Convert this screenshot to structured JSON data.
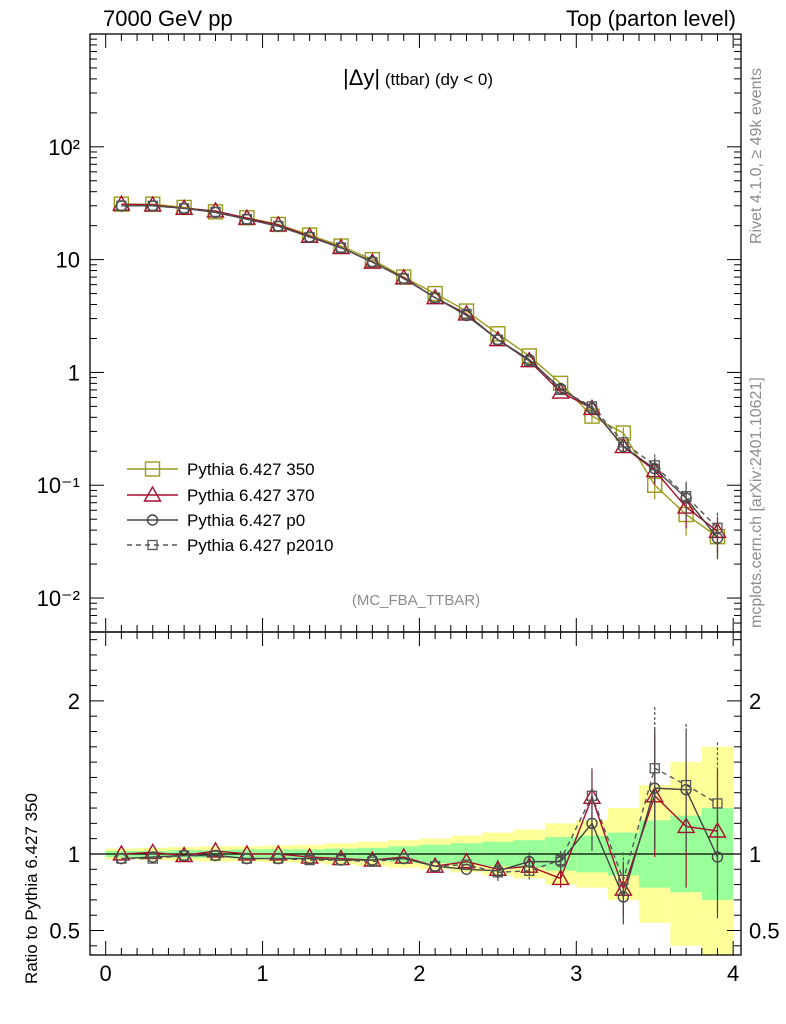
{
  "header": {
    "left": "7000 GeV pp",
    "right": "Top (parton level)"
  },
  "side_labels": {
    "rivet": "Rivet 4.1.0, ≥ 49k events",
    "mcplots": "mcplots.cern.ch [arXiv:2401.10621]"
  },
  "colors": {
    "p350": "#9a9a1a",
    "p370": "#a80d2b",
    "p0": "#444444",
    "p2010": "#555555",
    "band_inner": "#99ff99",
    "band_outer": "#ffff99"
  },
  "chart_data": [
    {
      "type": "line",
      "title": "|Δy| (ttbar) (dy < 0)",
      "title_main": "|Δy|",
      "title_sub": " (ttbar) (dy < 0)",
      "watermark": "(MC_FBA_TTBAR)",
      "yscale": "log",
      "xlim": [
        -0.1,
        4.05
      ],
      "ylim": [
        0.005,
        1000
      ],
      "xlabel": "",
      "ylabel": "",
      "ytick_labels": [
        "10⁻²",
        "10⁻¹",
        "1",
        "10",
        "10²"
      ],
      "x": [
        0.1,
        0.3,
        0.5,
        0.7,
        0.9,
        1.1,
        1.3,
        1.5,
        1.7,
        1.9,
        2.1,
        2.3,
        2.5,
        2.7,
        2.9,
        3.1,
        3.3,
        3.5,
        3.7,
        3.9
      ],
      "legend_position": "bottom-left",
      "series": [
        {
          "name": "Pythia 6.427 350",
          "key": "p350",
          "marker": "square",
          "dashed": false,
          "values": [
            31,
            31,
            29,
            26.5,
            23.5,
            20.5,
            16.5,
            13.2,
            10,
            7,
            5,
            3.5,
            2.2,
            1.4,
            0.8,
            0.41,
            0.29,
            0.1,
            0.055,
            0.035
          ]
        },
        {
          "name": "Pythia 6.427 370",
          "key": "p370",
          "marker": "triangle",
          "dashed": false,
          "values": [
            31,
            30.5,
            28.5,
            27,
            23.3,
            20.3,
            16.1,
            12.8,
            9.5,
            6.9,
            4.6,
            3.3,
            1.95,
            1.27,
            0.67,
            0.48,
            0.22,
            0.135,
            0.064,
            0.039
          ]
        },
        {
          "name": "Pythia 6.427 p0",
          "key": "p0",
          "marker": "circle",
          "dashed": false,
          "values": [
            30,
            30,
            28.5,
            26.2,
            22.8,
            19.8,
            15.9,
            12.7,
            9.6,
            6.8,
            4.6,
            3.2,
            1.95,
            1.3,
            0.72,
            0.48,
            0.22,
            0.14,
            0.077,
            0.034
          ]
        },
        {
          "name": "Pythia 6.427 p2010",
          "key": "p2010",
          "marker": "open-square-small",
          "dashed": true,
          "values": [
            30,
            30,
            28.5,
            26.5,
            22.8,
            19.8,
            15.8,
            12.8,
            9.5,
            6.8,
            4.6,
            3.3,
            1.95,
            1.26,
            0.7,
            0.5,
            0.24,
            0.15,
            0.08,
            0.042
          ]
        }
      ]
    },
    {
      "type": "line",
      "ylabel": "Ratio to Pythia 6.427 350",
      "xlabel": "",
      "xlim": [
        -0.1,
        4.05
      ],
      "ylim": [
        0.34,
        2.45
      ],
      "reference_line": 1,
      "xticks": [
        0,
        1,
        2,
        3,
        4
      ],
      "xtick_labels": [
        "0",
        "1",
        "2",
        "3",
        "4"
      ],
      "ytick_labels": [
        "0.5",
        "1",
        "2"
      ],
      "x": [
        0.1,
        0.3,
        0.5,
        0.7,
        0.9,
        1.1,
        1.3,
        1.5,
        1.7,
        1.9,
        2.1,
        2.3,
        2.5,
        2.7,
        2.9,
        3.1,
        3.3,
        3.5,
        3.7,
        3.9
      ],
      "bands": {
        "inner_half_width": [
          0.02,
          0.02,
          0.025,
          0.025,
          0.03,
          0.03,
          0.03,
          0.035,
          0.04,
          0.05,
          0.06,
          0.07,
          0.08,
          0.09,
          0.11,
          0.12,
          0.14,
          0.22,
          0.25,
          0.3
        ],
        "outer_half_width": [
          0.035,
          0.04,
          0.045,
          0.05,
          0.05,
          0.055,
          0.06,
          0.07,
          0.08,
          0.09,
          0.1,
          0.12,
          0.14,
          0.16,
          0.2,
          0.22,
          0.3,
          0.45,
          0.6,
          0.7
        ]
      },
      "series": [
        {
          "name": "Pythia 6.427 370",
          "key": "p370",
          "marker": "triangle",
          "dashed": false,
          "values": [
            1.0,
            1.01,
            0.99,
            1.02,
            1.0,
            1.0,
            0.98,
            0.97,
            0.96,
            0.98,
            0.92,
            0.95,
            0.9,
            0.92,
            0.84,
            1.37,
            0.77,
            1.38,
            1.18,
            1.15
          ]
        },
        {
          "name": "Pythia 6.427 p0",
          "key": "p0",
          "marker": "circle",
          "dashed": false,
          "values": [
            0.97,
            0.98,
            0.99,
            0.99,
            0.97,
            0.97,
            0.97,
            0.96,
            0.96,
            0.97,
            0.92,
            0.9,
            0.89,
            0.95,
            0.95,
            1.2,
            0.72,
            1.43,
            1.42,
            0.98
          ]
        },
        {
          "name": "Pythia 6.427 p2010",
          "key": "p2010",
          "marker": "open-square-small",
          "dashed": true,
          "values": [
            0.97,
            0.97,
            0.99,
            0.99,
            0.97,
            0.97,
            0.96,
            0.96,
            0.95,
            0.97,
            0.92,
            0.93,
            0.88,
            0.89,
            0.96,
            1.38,
            0.83,
            1.56,
            1.45,
            1.33
          ]
        }
      ]
    }
  ]
}
